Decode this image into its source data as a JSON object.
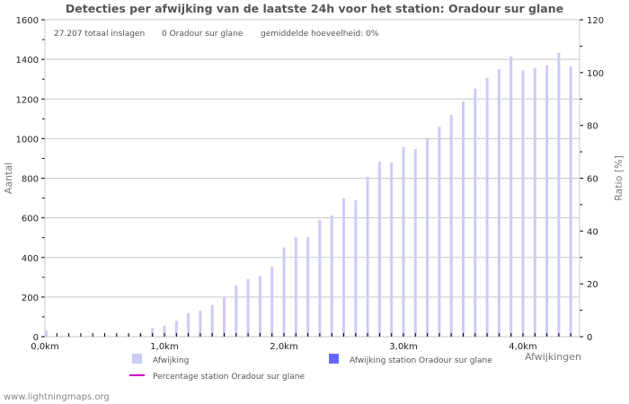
{
  "title": "Detecties per afwijking van de laatste 24h voor het station: Oradour sur glane",
  "stats": {
    "total": "27.207 totaal inslagen",
    "station": "0 Oradour sur glane",
    "average": "gemiddelde hoeveelheid: 0%"
  },
  "footer": "www.lightningmaps.org",
  "colors": {
    "bar": "#ccccf8",
    "station_bar": "#6666ff",
    "percentage_line": "#cc00cc",
    "grid": "#c8c8c8",
    "axis_text": "#222222",
    "label_text": "#777777"
  },
  "legend": [
    {
      "label": "Afwijking",
      "type": "box",
      "color": "#ccccf8"
    },
    {
      "label": "Afwijking station Oradour sur glane",
      "type": "box",
      "color": "#6666ff"
    },
    {
      "label": "Percentage station Oradour sur glane",
      "type": "line",
      "color": "#cc00cc"
    }
  ],
  "chart_data": {
    "type": "bar",
    "title": "Detecties per afwijking van de laatste 24h voor het station: Oradour sur glane",
    "xlabel": "Afwijkingen",
    "ylabel": "Aantal",
    "y2label": "Ratio [%]",
    "ylim": [
      0,
      1600
    ],
    "y2lim": [
      0,
      120
    ],
    "yticks": [
      0,
      200,
      400,
      600,
      800,
      1000,
      1200,
      1400,
      1600
    ],
    "y2ticks": [
      0,
      20,
      40,
      60,
      80,
      100,
      120
    ],
    "xtick_labels": [
      "0,0km",
      "1,0km",
      "2,0km",
      "3,0km",
      "4,0km"
    ],
    "grid": true,
    "categories_km": [
      0.0,
      0.1,
      0.2,
      0.3,
      0.4,
      0.5,
      0.6,
      0.7,
      0.8,
      0.9,
      1.0,
      1.1,
      1.2,
      1.3,
      1.4,
      1.5,
      1.6,
      1.7,
      1.8,
      1.9,
      2.0,
      2.1,
      2.2,
      2.3,
      2.4,
      2.5,
      2.6,
      2.7,
      2.8,
      2.9,
      3.0,
      3.1,
      3.2,
      3.3,
      3.4,
      3.5,
      3.6,
      3.7,
      3.8,
      3.9,
      4.0,
      4.1,
      4.2,
      4.3,
      4.4
    ],
    "series": [
      {
        "name": "Afwijking",
        "values": [
          30,
          0,
          0,
          0,
          0,
          3,
          5,
          8,
          15,
          45,
          55,
          80,
          118,
          132,
          160,
          200,
          258,
          290,
          305,
          352,
          450,
          503,
          503,
          590,
          612,
          698,
          690,
          808,
          885,
          880,
          958,
          948,
          998,
          1060,
          1120,
          1188,
          1252,
          1306,
          1351,
          1415,
          1346,
          1355,
          1370,
          1433,
          1365
        ]
      },
      {
        "name": "Afwijking station Oradour sur glane",
        "values": [
          0,
          0,
          0,
          0,
          0,
          0,
          0,
          0,
          0,
          0,
          0,
          0,
          0,
          0,
          0,
          0,
          0,
          0,
          0,
          0,
          0,
          0,
          0,
          0,
          0,
          0,
          0,
          0,
          0,
          0,
          0,
          0,
          0,
          0,
          0,
          0,
          0,
          0,
          0,
          0,
          0,
          0,
          0,
          0,
          0
        ]
      },
      {
        "name": "Percentage station Oradour sur glane",
        "axis": "right",
        "values": []
      }
    ],
    "legend_position": "bottom"
  }
}
